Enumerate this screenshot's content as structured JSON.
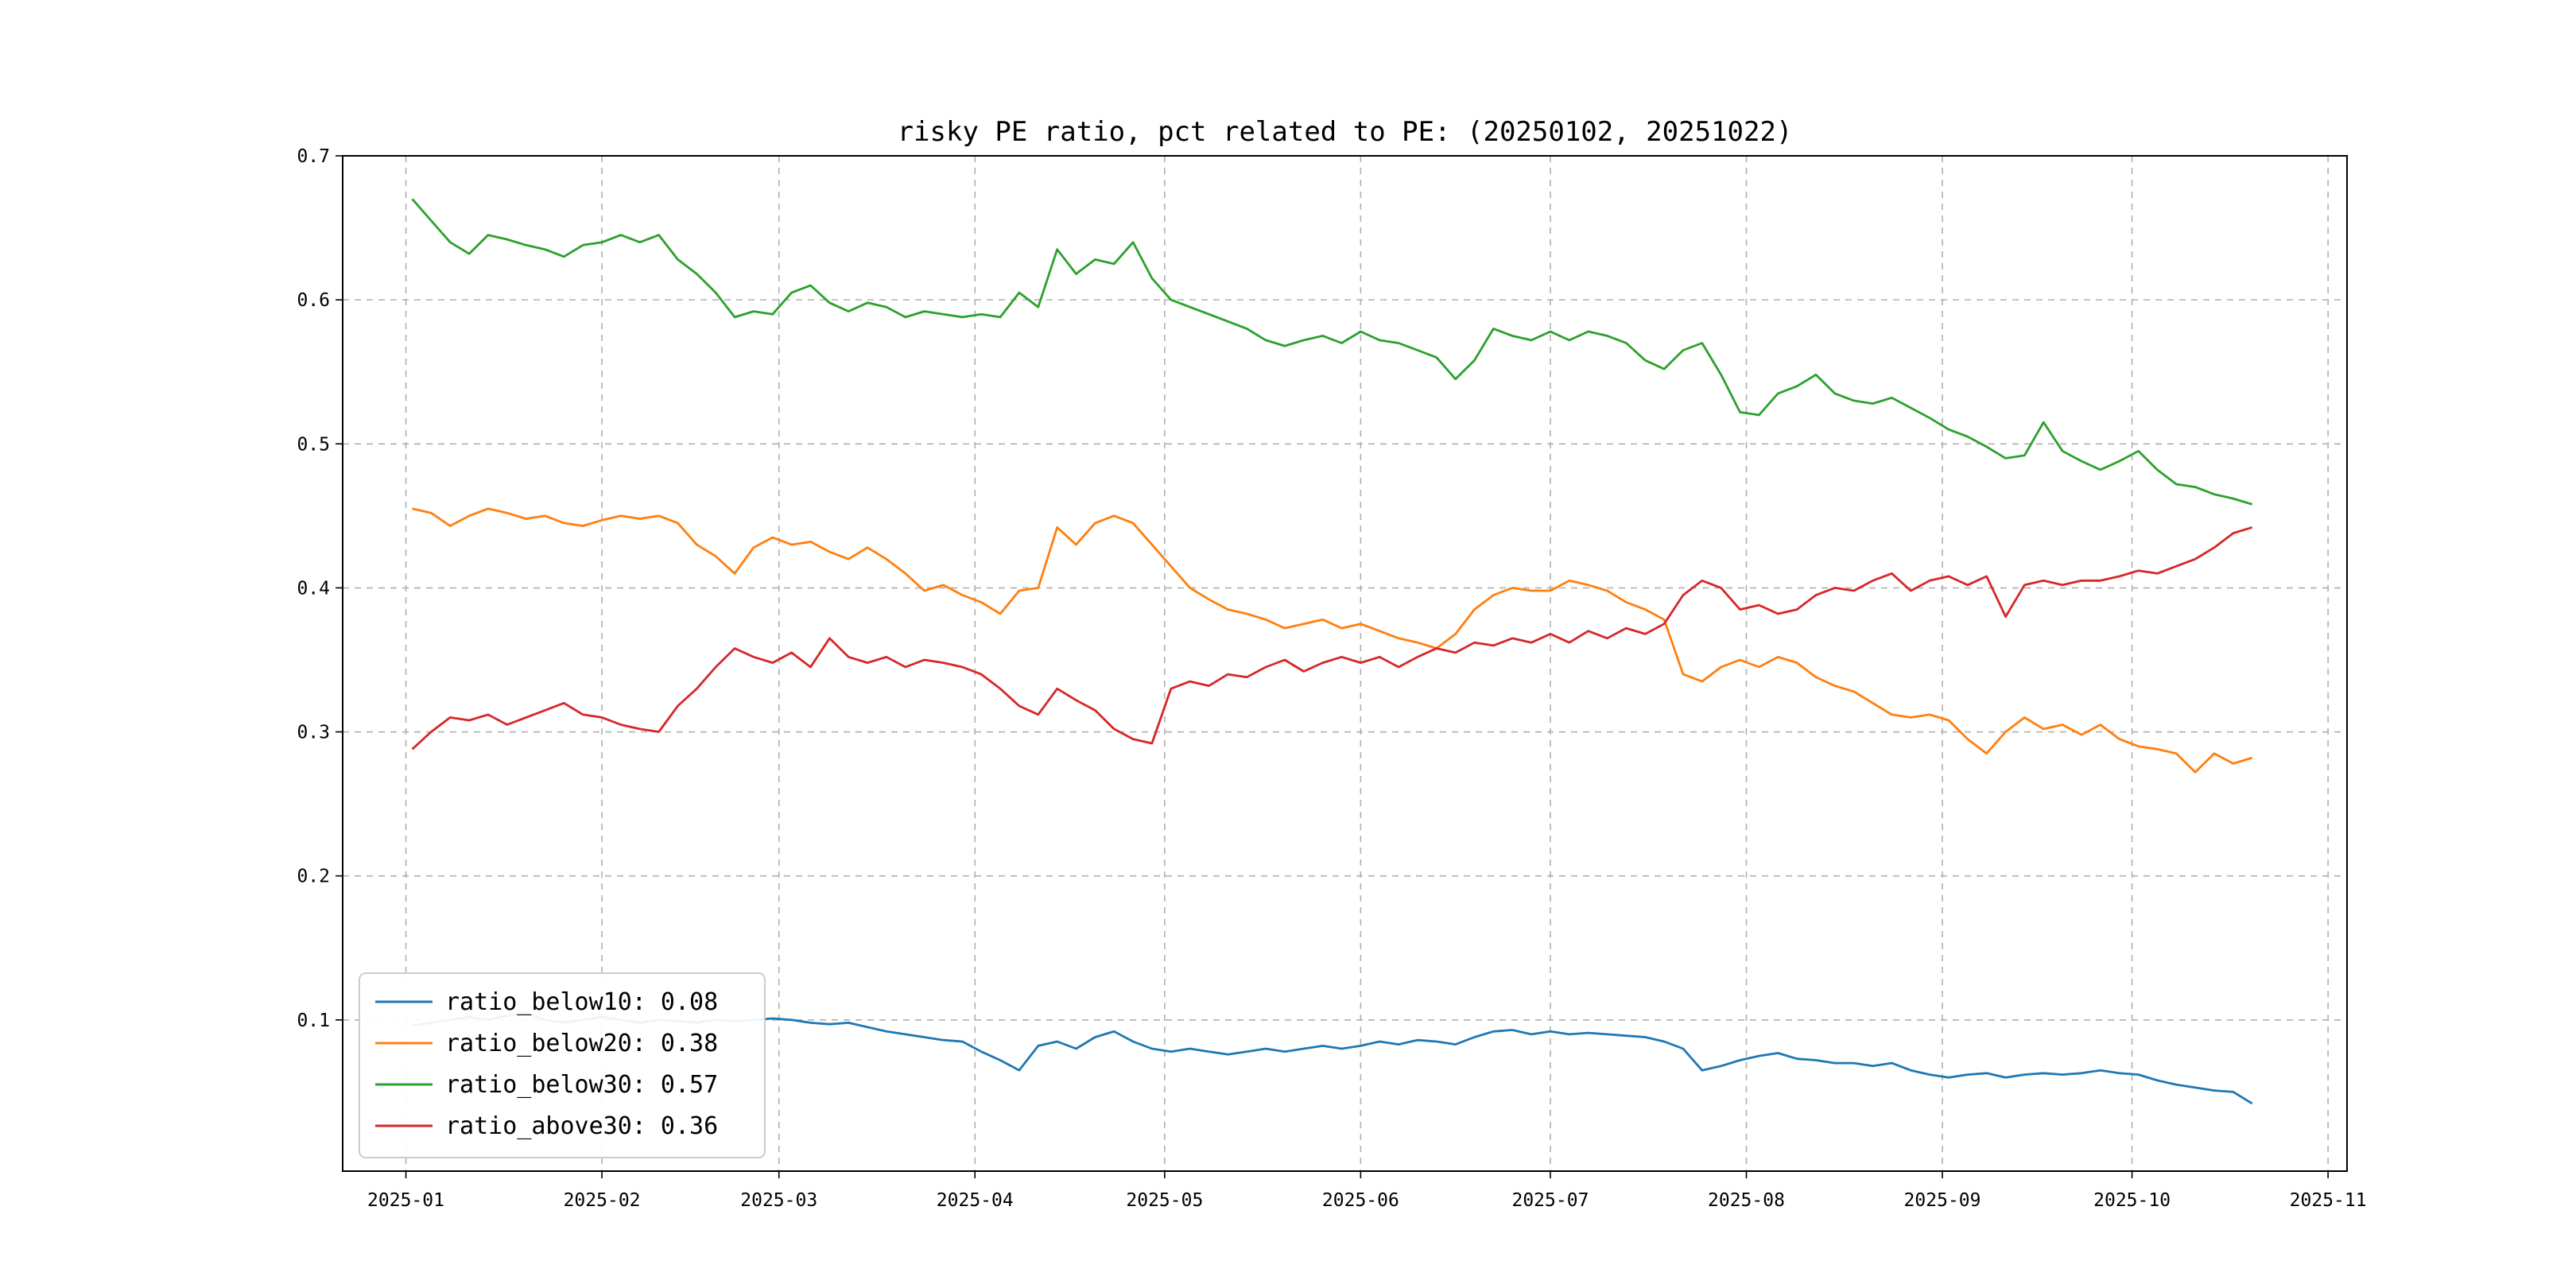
{
  "figure": {
    "background": "#ffffff"
  },
  "chart_data": {
    "type": "line",
    "title": "risky PE ratio, pct related to PE: (20250102, 20251022)",
    "xlabel": "",
    "ylabel": "",
    "grid": true,
    "grid_style": "dashed",
    "legend_position": "lower left",
    "x_epoch": "2025-01-01",
    "x_start_day_offset": 1,
    "x_step_days": 3,
    "n_points": 98,
    "xlim_days": [
      -10,
      307
    ],
    "ylim": [
      -0.005,
      0.7
    ],
    "yticks": [
      0.1,
      0.2,
      0.3,
      0.4,
      0.5,
      0.6,
      0.7
    ],
    "xticks": [
      {
        "label": "2025-01",
        "day": 0
      },
      {
        "label": "2025-02",
        "day": 31
      },
      {
        "label": "2025-03",
        "day": 59
      },
      {
        "label": "2025-04",
        "day": 90
      },
      {
        "label": "2025-05",
        "day": 120
      },
      {
        "label": "2025-06",
        "day": 151
      },
      {
        "label": "2025-07",
        "day": 181
      },
      {
        "label": "2025-08",
        "day": 212
      },
      {
        "label": "2025-09",
        "day": 243
      },
      {
        "label": "2025-10",
        "day": 273
      },
      {
        "label": "2025-11",
        "day": 304
      }
    ],
    "series": [
      {
        "name": "ratio_below10",
        "legend_label": "ratio_below10: 0.08",
        "color": "#1f77b4",
        "values": [
          0.096,
          0.098,
          0.1,
          0.102,
          0.1,
          0.103,
          0.105,
          0.1,
          0.098,
          0.1,
          0.102,
          0.1,
          0.098,
          0.1,
          0.099,
          0.098,
          0.1,
          0.099,
          0.1,
          0.101,
          0.1,
          0.098,
          0.097,
          0.098,
          0.095,
          0.092,
          0.09,
          0.088,
          0.086,
          0.085,
          0.078,
          0.072,
          0.065,
          0.082,
          0.085,
          0.08,
          0.088,
          0.092,
          0.085,
          0.08,
          0.078,
          0.08,
          0.078,
          0.076,
          0.078,
          0.08,
          0.078,
          0.08,
          0.082,
          0.08,
          0.082,
          0.085,
          0.083,
          0.086,
          0.085,
          0.083,
          0.088,
          0.092,
          0.093,
          0.09,
          0.092,
          0.09,
          0.091,
          0.09,
          0.089,
          0.088,
          0.085,
          0.08,
          0.065,
          0.068,
          0.072,
          0.075,
          0.077,
          0.073,
          0.072,
          0.07,
          0.07,
          0.068,
          0.07,
          0.065,
          0.062,
          0.06,
          0.062,
          0.063,
          0.06,
          0.062,
          0.063,
          0.062,
          0.063,
          0.065,
          0.063,
          0.062,
          0.058,
          0.055,
          0.053,
          0.051,
          0.05,
          0.042
        ]
      },
      {
        "name": "ratio_below20",
        "legend_label": "ratio_below20: 0.38",
        "color": "#ff7f0e",
        "values": [
          0.455,
          0.452,
          0.443,
          0.45,
          0.455,
          0.452,
          0.448,
          0.45,
          0.445,
          0.443,
          0.447,
          0.45,
          0.448,
          0.45,
          0.445,
          0.43,
          0.422,
          0.41,
          0.428,
          0.435,
          0.43,
          0.432,
          0.425,
          0.42,
          0.428,
          0.42,
          0.41,
          0.398,
          0.402,
          0.395,
          0.39,
          0.382,
          0.398,
          0.4,
          0.442,
          0.43,
          0.445,
          0.45,
          0.445,
          0.43,
          0.415,
          0.4,
          0.392,
          0.385,
          0.382,
          0.378,
          0.372,
          0.375,
          0.378,
          0.372,
          0.375,
          0.37,
          0.365,
          0.362,
          0.358,
          0.368,
          0.385,
          0.395,
          0.4,
          0.398,
          0.398,
          0.405,
          0.402,
          0.398,
          0.39,
          0.385,
          0.378,
          0.34,
          0.335,
          0.345,
          0.35,
          0.345,
          0.352,
          0.348,
          0.338,
          0.332,
          0.328,
          0.32,
          0.312,
          0.31,
          0.312,
          0.308,
          0.295,
          0.285,
          0.3,
          0.31,
          0.302,
          0.305,
          0.298,
          0.305,
          0.295,
          0.29,
          0.288,
          0.285,
          0.272,
          0.285,
          0.278,
          0.282
        ]
      },
      {
        "name": "ratio_below30",
        "legend_label": "ratio_below30: 0.57",
        "color": "#2ca02c",
        "values": [
          0.67,
          0.655,
          0.64,
          0.632,
          0.645,
          0.642,
          0.638,
          0.635,
          0.63,
          0.638,
          0.64,
          0.645,
          0.64,
          0.645,
          0.628,
          0.618,
          0.605,
          0.588,
          0.592,
          0.59,
          0.605,
          0.61,
          0.598,
          0.592,
          0.598,
          0.595,
          0.588,
          0.592,
          0.59,
          0.588,
          0.59,
          0.588,
          0.605,
          0.595,
          0.635,
          0.618,
          0.628,
          0.625,
          0.64,
          0.615,
          0.6,
          0.595,
          0.59,
          0.585,
          0.58,
          0.572,
          0.568,
          0.572,
          0.575,
          0.57,
          0.578,
          0.572,
          0.57,
          0.565,
          0.56,
          0.545,
          0.558,
          0.58,
          0.575,
          0.572,
          0.578,
          0.572,
          0.578,
          0.575,
          0.57,
          0.558,
          0.552,
          0.565,
          0.57,
          0.548,
          0.522,
          0.52,
          0.535,
          0.54,
          0.548,
          0.535,
          0.53,
          0.528,
          0.532,
          0.525,
          0.518,
          0.51,
          0.505,
          0.498,
          0.49,
          0.492,
          0.515,
          0.495,
          0.488,
          0.482,
          0.488,
          0.495,
          0.482,
          0.472,
          0.47,
          0.465,
          0.462,
          0.458
        ]
      },
      {
        "name": "ratio_above30",
        "legend_label": "ratio_above30: 0.36",
        "color": "#d62728",
        "values": [
          0.288,
          0.3,
          0.31,
          0.308,
          0.312,
          0.305,
          0.31,
          0.315,
          0.32,
          0.312,
          0.31,
          0.305,
          0.302,
          0.3,
          0.318,
          0.33,
          0.345,
          0.358,
          0.352,
          0.348,
          0.355,
          0.345,
          0.365,
          0.352,
          0.348,
          0.352,
          0.345,
          0.35,
          0.348,
          0.345,
          0.34,
          0.33,
          0.318,
          0.312,
          0.33,
          0.322,
          0.315,
          0.302,
          0.295,
          0.292,
          0.33,
          0.335,
          0.332,
          0.34,
          0.338,
          0.345,
          0.35,
          0.342,
          0.348,
          0.352,
          0.348,
          0.352,
          0.345,
          0.352,
          0.358,
          0.355,
          0.362,
          0.36,
          0.365,
          0.362,
          0.368,
          0.362,
          0.37,
          0.365,
          0.372,
          0.368,
          0.375,
          0.395,
          0.405,
          0.4,
          0.385,
          0.388,
          0.382,
          0.385,
          0.395,
          0.4,
          0.398,
          0.405,
          0.41,
          0.398,
          0.405,
          0.408,
          0.402,
          0.408,
          0.38,
          0.402,
          0.405,
          0.402,
          0.405,
          0.405,
          0.408,
          0.412,
          0.41,
          0.415,
          0.42,
          0.428,
          0.438,
          0.442
        ]
      }
    ],
    "style": {
      "grid_color": "#b0b0b0",
      "axes_edge_color": "#000000",
      "legend_edge_color": "#cccccc",
      "legend_face_color": "#ffffff"
    }
  }
}
